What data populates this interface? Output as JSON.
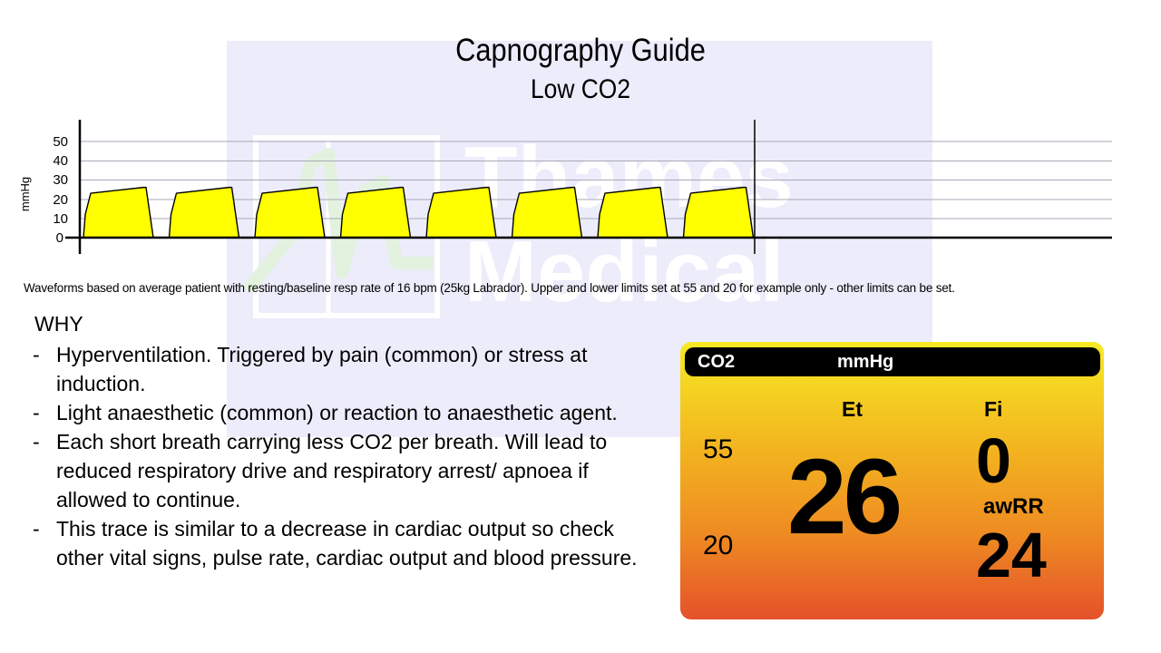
{
  "header": {
    "title": "Capnography Guide",
    "subtitle": "Low CO2"
  },
  "watermark": {
    "line1": "Thames",
    "line2": "Medical"
  },
  "caption": "Waveforms based on average patient with resting/baseline resp rate of 16 bpm (25kg Labrador). Upper and lower limits set at 55 and 20 for example only - other limits can be set.",
  "why": {
    "heading": "WHY",
    "bullet_marker": "-",
    "items": [
      "Hyperventilation. Triggered by pain (common) or stress at induction.",
      "Light anaesthetic (common) or reaction to anaesthetic agent.",
      "Each short breath carrying less CO2 per breath. Will lead to reduced respiratory drive and respiratory arrest/ apnoea if allowed to continue.",
      "This trace is similar to a decrease in cardiac output so check other vital signs, pulse rate, cardiac output and blood pressure."
    ]
  },
  "monitor": {
    "parameter": "CO2",
    "unit": "mmHg",
    "et_label": "Et",
    "fi_label": "Fi",
    "upper_limit": "55",
    "lower_limit": "20",
    "et_value": "26",
    "fi_value": "0",
    "awrr_label": "awRR",
    "awrr_value": "24",
    "colors": {
      "top": "#f7ea24",
      "bottom": "#e5512a",
      "header": "#000000"
    }
  },
  "chart_data": {
    "type": "area",
    "title": "Capnography Guide - Low CO2",
    "xlabel": "",
    "ylabel": "mmHg",
    "yticks": [
      0,
      10,
      20,
      30,
      40,
      50
    ],
    "ylim": [
      0,
      60
    ],
    "grid": true,
    "fill_color": "#ffff00",
    "breath_count": 8,
    "breath_shape": {
      "description": "Each breath: rapid upstroke to ~12 then ~23 mmHg, sloping plateau rising to ~26 mmHg (EtCO2), sharp drop back to 0",
      "points_mmHg": [
        0,
        12,
        23,
        26,
        26,
        0
      ]
    },
    "series": [
      {
        "name": "CO2 waveform",
        "peak_values": [
          26,
          26,
          26,
          26,
          26,
          26,
          26,
          26
        ]
      }
    ],
    "annotations": [
      "Vertical marker after 8th breath; flat baseline afterwards"
    ]
  }
}
